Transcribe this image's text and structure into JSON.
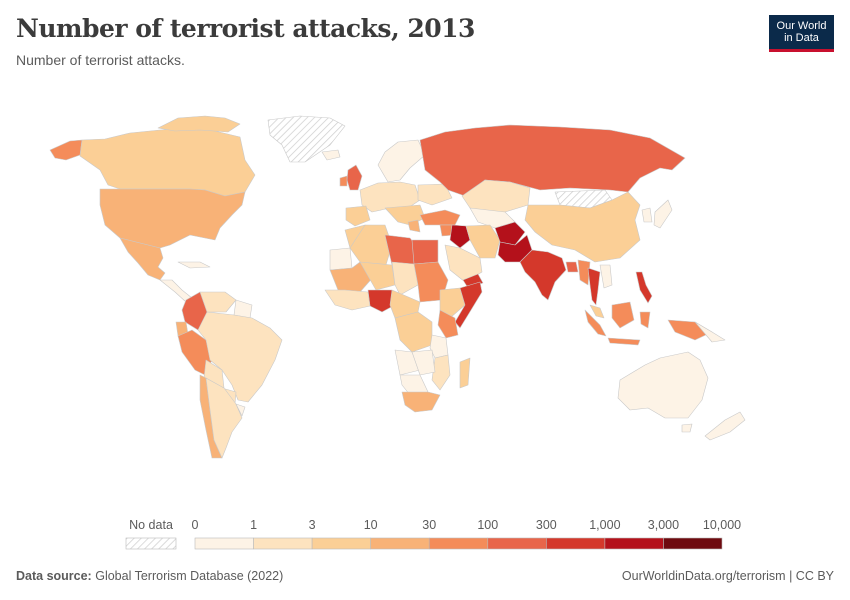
{
  "header": {
    "title": "Number of terrorist attacks, 2013",
    "subtitle": "Number of terrorist attacks.",
    "logo_line1": "Our World",
    "logo_line2": "in Data"
  },
  "legend": {
    "no_data_label": "No data",
    "ticks": [
      "0",
      "1",
      "3",
      "10",
      "30",
      "100",
      "300",
      "1,000",
      "3,000",
      "10,000"
    ],
    "colors": [
      "#fdf3e6",
      "#fde3bf",
      "#fbcf96",
      "#f8b277",
      "#f48c5a",
      "#e8654a",
      "#d4382b",
      "#b4111b",
      "#6e0a0f"
    ]
  },
  "footer": {
    "source_label": "Data source:",
    "source_text": "Global Terrorism Database (2022)",
    "link_text": "OurWorldinData.org/terrorism | CC BY"
  },
  "map_data": {
    "year": 2013,
    "metric": "Number of terrorist attacks",
    "regions": [
      {
        "name": "Canada",
        "bin": "3-10"
      },
      {
        "name": "United States",
        "bin": "10-30"
      },
      {
        "name": "Mexico",
        "bin": "10-30"
      },
      {
        "name": "Colombia",
        "bin": "100-300"
      },
      {
        "name": "Peru",
        "bin": "30-100"
      },
      {
        "name": "Brazil",
        "bin": "1-3"
      },
      {
        "name": "Argentina",
        "bin": "1-3"
      },
      {
        "name": "Greenland",
        "bin": "no data"
      },
      {
        "name": "United Kingdom",
        "bin": "100-300"
      },
      {
        "name": "Russia",
        "bin": "100-300"
      },
      {
        "name": "Kazakhstan",
        "bin": "1-3"
      },
      {
        "name": "China",
        "bin": "10-30"
      },
      {
        "name": "Iraq",
        "bin": "3000-10000"
      },
      {
        "name": "Pakistan",
        "bin": "1000-3000"
      },
      {
        "name": "Afghanistan",
        "bin": "1000-3000"
      },
      {
        "name": "India",
        "bin": "300-1000"
      },
      {
        "name": "Thailand",
        "bin": "300-1000"
      },
      {
        "name": "Philippines",
        "bin": "300-1000"
      },
      {
        "name": "Nigeria",
        "bin": "300-1000"
      },
      {
        "name": "Somalia",
        "bin": "100-300"
      },
      {
        "name": "Egypt",
        "bin": "100-300"
      },
      {
        "name": "Libya",
        "bin": "100-300"
      },
      {
        "name": "Sudan",
        "bin": "30-100"
      },
      {
        "name": "Yemen",
        "bin": "300-1000"
      },
      {
        "name": "South Africa",
        "bin": "10-30"
      },
      {
        "name": "Australia",
        "bin": "0-1"
      },
      {
        "name": "Indonesia",
        "bin": "30-100"
      },
      {
        "name": "Turkey",
        "bin": "30-100"
      }
    ]
  }
}
